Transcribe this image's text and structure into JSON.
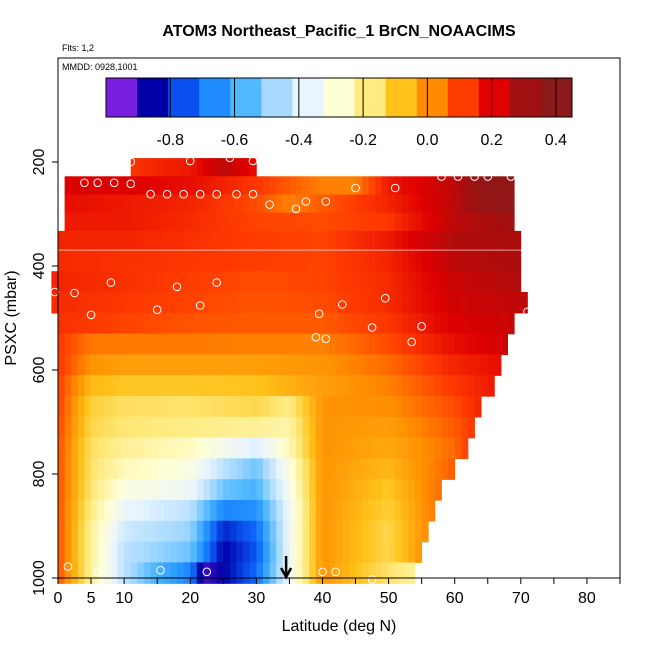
{
  "chart_data": {
    "type": "heatmap",
    "title": "ATOM3 Northeast_Pacific_1 BrCN_NOAACIMS",
    "annotations": [
      "Flts: 1,2",
      "MMDD: 0928,1001"
    ],
    "xlabel": "Latitude (deg N)",
    "ylabel": "PSXC (mbar)",
    "xlim": [
      0,
      85
    ],
    "ylim": [
      1000,
      0
    ],
    "x_ticks": [
      0,
      5,
      10,
      20,
      30,
      40,
      50,
      60,
      70,
      80
    ],
    "x_tick_labels": [
      "0",
      "5",
      "10",
      "20",
      "30",
      "40",
      "50",
      "60",
      "70",
      "80"
    ],
    "y_ticks": [
      200,
      400,
      600,
      800,
      1000
    ],
    "y_tick_labels": [
      "200",
      "400",
      "600",
      "800",
      "1000"
    ],
    "colorbar": {
      "range": [
        -1.0,
        0.45
      ],
      "ticks": [
        -0.8,
        -0.6,
        -0.4,
        -0.2,
        0.0,
        0.2,
        0.4
      ],
      "tick_labels": [
        "-0.8",
        "-0.6",
        "-0.4",
        "-0.2",
        "0.0",
        "0.2",
        "0.4"
      ],
      "colors": [
        "#7a1fe0",
        "#0000a8",
        "#0a4ff0",
        "#1e8cff",
        "#4fb8ff",
        "#a8daff",
        "#e8f4ff",
        "#ffffd6",
        "#ffeb80",
        "#ffc21a",
        "#ff8c00",
        "#ff3c00",
        "#e00000",
        "#a01010",
        "#8b1a1a"
      ]
    },
    "pressure_levels": [
      210,
      245,
      280,
      315,
      350,
      390,
      430,
      470,
      510,
      550,
      590,
      630,
      670,
      710,
      750,
      790,
      830,
      870,
      910,
      950,
      990
    ],
    "latitude_profiles": [
      {
        "pressure": 210,
        "lat": [
          11,
          30
        ],
        "lat_pts": [
          11,
          15,
          20,
          25,
          30
        ],
        "values": [
          0.15,
          0.18,
          0.2,
          0.3,
          0.22
        ]
      },
      {
        "pressure": 245,
        "lat": [
          1,
          69
        ],
        "lat_pts": [
          1,
          10,
          20,
          30,
          40,
          45,
          50,
          55,
          60,
          65,
          69
        ],
        "values": [
          0.25,
          0.25,
          0.22,
          0.15,
          0.05,
          0.05,
          0.2,
          0.25,
          0.3,
          0.42,
          0.42
        ]
      },
      {
        "pressure": 280,
        "lat": [
          1,
          69
        ],
        "lat_pts": [
          1,
          10,
          20,
          30,
          35,
          40,
          50,
          60,
          65,
          69
        ],
        "values": [
          0.22,
          0.2,
          0.18,
          0.12,
          0.05,
          0.1,
          0.18,
          0.3,
          0.4,
          0.42
        ]
      },
      {
        "pressure": 315,
        "lat": [
          1,
          69
        ],
        "lat_pts": [
          1,
          10,
          20,
          30,
          40,
          50,
          60,
          69
        ],
        "values": [
          0.2,
          0.2,
          0.17,
          0.13,
          0.12,
          0.15,
          0.3,
          0.35
        ]
      },
      {
        "pressure": 350,
        "lat": [
          0,
          70
        ],
        "lat_pts": [
          0,
          10,
          20,
          30,
          40,
          50,
          60,
          70
        ],
        "values": [
          0.18,
          0.18,
          0.16,
          0.14,
          0.13,
          0.2,
          0.32,
          0.33
        ]
      },
      {
        "pressure": 390,
        "lat": [
          0,
          70
        ],
        "lat_pts": [
          0,
          10,
          20,
          30,
          40,
          50,
          60,
          70
        ],
        "values": [
          0.17,
          0.16,
          0.15,
          0.14,
          0.13,
          0.18,
          0.3,
          0.33
        ]
      },
      {
        "pressure": 430,
        "lat": [
          -1,
          70
        ],
        "lat_pts": [
          -1,
          10,
          20,
          30,
          40,
          50,
          60,
          70
        ],
        "values": [
          0.18,
          0.16,
          0.14,
          0.12,
          0.13,
          0.17,
          0.28,
          0.32
        ]
      },
      {
        "pressure": 470,
        "lat": [
          -1,
          71
        ],
        "lat_pts": [
          -1,
          10,
          20,
          30,
          40,
          50,
          60,
          71
        ],
        "values": [
          0.17,
          0.15,
          0.13,
          0.11,
          0.12,
          0.17,
          0.27,
          0.3
        ]
      },
      {
        "pressure": 510,
        "lat": [
          0,
          69
        ],
        "lat_pts": [
          0,
          10,
          20,
          30,
          40,
          50,
          60,
          69
        ],
        "values": [
          0.16,
          0.13,
          0.11,
          0.1,
          0.1,
          0.15,
          0.25,
          0.28
        ]
      },
      {
        "pressure": 550,
        "lat": [
          0,
          68
        ],
        "lat_pts": [
          0,
          5,
          10,
          20,
          30,
          40,
          50,
          60,
          68
        ],
        "values": [
          0.15,
          0.06,
          0.06,
          0.06,
          0.05,
          0.05,
          0.12,
          0.22,
          0.27
        ]
      },
      {
        "pressure": 590,
        "lat": [
          0,
          67
        ],
        "lat_pts": [
          0,
          5,
          10,
          20,
          30,
          40,
          50,
          60,
          67
        ],
        "values": [
          0.15,
          0.02,
          0.0,
          0.0,
          0.0,
          0.02,
          0.08,
          0.18,
          0.22
        ]
      },
      {
        "pressure": 630,
        "lat": [
          0,
          66
        ],
        "lat_pts": [
          0,
          5,
          10,
          20,
          30,
          40,
          50,
          60,
          66
        ],
        "values": [
          0.14,
          -0.05,
          -0.08,
          -0.08,
          -0.07,
          0.0,
          0.05,
          0.15,
          0.2
        ]
      },
      {
        "pressure": 670,
        "lat": [
          0,
          64
        ],
        "lat_pts": [
          0,
          5,
          10,
          20,
          30,
          35,
          40,
          50,
          60,
          64
        ],
        "values": [
          0.14,
          -0.1,
          -0.14,
          -0.15,
          -0.12,
          -0.18,
          0.02,
          0.03,
          0.12,
          0.18
        ]
      },
      {
        "pressure": 710,
        "lat": [
          0,
          63
        ],
        "lat_pts": [
          0,
          5,
          10,
          20,
          30,
          35,
          40,
          50,
          60,
          63
        ],
        "values": [
          0.13,
          -0.12,
          -0.16,
          -0.18,
          -0.2,
          -0.22,
          0.02,
          0.0,
          0.1,
          0.15
        ]
      },
      {
        "pressure": 750,
        "lat": [
          0,
          62
        ],
        "lat_pts": [
          0,
          5,
          10,
          20,
          30,
          35,
          40,
          50,
          60,
          62
        ],
        "values": [
          0.12,
          -0.14,
          -0.2,
          -0.25,
          -0.4,
          -0.24,
          0.02,
          -0.02,
          0.08,
          0.14
        ]
      },
      {
        "pressure": 790,
        "lat": [
          0,
          60
        ],
        "lat_pts": [
          0,
          5,
          10,
          20,
          25,
          30,
          35,
          40,
          50,
          60
        ],
        "values": [
          0.12,
          -0.15,
          -0.24,
          -0.3,
          -0.45,
          -0.55,
          -0.3,
          0.02,
          -0.05,
          0.1
        ]
      },
      {
        "pressure": 830,
        "lat": [
          0,
          58
        ],
        "lat_pts": [
          0,
          5,
          10,
          20,
          25,
          30,
          35,
          40,
          50,
          58
        ],
        "values": [
          0.12,
          -0.16,
          -0.3,
          -0.35,
          -0.55,
          -0.6,
          -0.32,
          0.02,
          -0.08,
          0.08
        ]
      },
      {
        "pressure": 870,
        "lat": [
          0,
          57
        ],
        "lat_pts": [
          0,
          5,
          10,
          20,
          25,
          30,
          35,
          40,
          50,
          57
        ],
        "values": [
          0.12,
          -0.18,
          -0.36,
          -0.45,
          -0.7,
          -0.68,
          -0.35,
          0.02,
          -0.1,
          0.06
        ]
      },
      {
        "pressure": 910,
        "lat": [
          0,
          56
        ],
        "lat_pts": [
          0,
          5,
          10,
          20,
          25,
          30,
          35,
          40,
          50,
          56
        ],
        "values": [
          0.12,
          -0.2,
          -0.42,
          -0.5,
          -0.85,
          -0.75,
          -0.35,
          0.02,
          -0.12,
          0.04
        ]
      },
      {
        "pressure": 950,
        "lat": [
          0,
          55
        ],
        "lat_pts": [
          0,
          5,
          10,
          20,
          25,
          30,
          35,
          40,
          50,
          55
        ],
        "values": [
          0.12,
          -0.2,
          -0.45,
          -0.55,
          -0.9,
          -0.78,
          -0.35,
          0.02,
          -0.12,
          0.02
        ]
      },
      {
        "pressure": 990,
        "lat": [
          0,
          54
        ],
        "lat_pts": [
          0,
          5,
          10,
          15,
          20,
          22,
          25,
          30,
          35,
          40,
          50,
          54
        ],
        "values": [
          0.12,
          -0.2,
          -0.45,
          -0.6,
          -0.7,
          -0.95,
          -0.9,
          -0.75,
          -0.35,
          0.02,
          -0.15,
          -0.2
        ]
      }
    ],
    "sample_points": [
      {
        "x": 11,
        "y": 200
      },
      {
        "x": 20,
        "y": 198
      },
      {
        "x": 26,
        "y": 192
      },
      {
        "x": 29.5,
        "y": 198
      },
      {
        "x": 2.5,
        "y": 218
      },
      {
        "x": 4,
        "y": 240
      },
      {
        "x": 6,
        "y": 240
      },
      {
        "x": 8.5,
        "y": 240
      },
      {
        "x": 11,
        "y": 242
      },
      {
        "x": 14,
        "y": 262
      },
      {
        "x": 16.5,
        "y": 262
      },
      {
        "x": 19,
        "y": 262
      },
      {
        "x": 21.5,
        "y": 262
      },
      {
        "x": 24,
        "y": 262
      },
      {
        "x": 27,
        "y": 262
      },
      {
        "x": 29.5,
        "y": 262
      },
      {
        "x": 32,
        "y": 282
      },
      {
        "x": 36,
        "y": 290
      },
      {
        "x": 37.5,
        "y": 276
      },
      {
        "x": 40.5,
        "y": 276
      },
      {
        "x": 45,
        "y": 250
      },
      {
        "x": 51,
        "y": 250
      },
      {
        "x": 58,
        "y": 228
      },
      {
        "x": 60.5,
        "y": 228
      },
      {
        "x": 63,
        "y": 228
      },
      {
        "x": 65,
        "y": 228
      },
      {
        "x": 68.5,
        "y": 228
      },
      {
        "x": -0.5,
        "y": 450
      },
      {
        "x": 2.5,
        "y": 452
      },
      {
        "x": 8,
        "y": 432
      },
      {
        "x": 18,
        "y": 440
      },
      {
        "x": 24,
        "y": 432
      },
      {
        "x": 15,
        "y": 484
      },
      {
        "x": 21.5,
        "y": 476
      },
      {
        "x": 5,
        "y": 494
      },
      {
        "x": 39.5,
        "y": 492
      },
      {
        "x": 43,
        "y": 474
      },
      {
        "x": 49.5,
        "y": 462
      },
      {
        "x": 47.5,
        "y": 518
      },
      {
        "x": 55,
        "y": 516
      },
      {
        "x": 39,
        "y": 537
      },
      {
        "x": 40.5,
        "y": 540
      },
      {
        "x": 53.5,
        "y": 546
      },
      {
        "x": 71,
        "y": 488
      },
      {
        "x": 1.5,
        "y": 978
      },
      {
        "x": 6,
        "y": 988
      },
      {
        "x": 15.5,
        "y": 985
      },
      {
        "x": 22.5,
        "y": 988
      },
      {
        "x": 40,
        "y": 988
      },
      {
        "x": 42,
        "y": 988
      },
      {
        "x": 47.5,
        "y": 1003
      }
    ],
    "marker": {
      "x": 34.5,
      "symbol": "downward-arrow"
    }
  }
}
